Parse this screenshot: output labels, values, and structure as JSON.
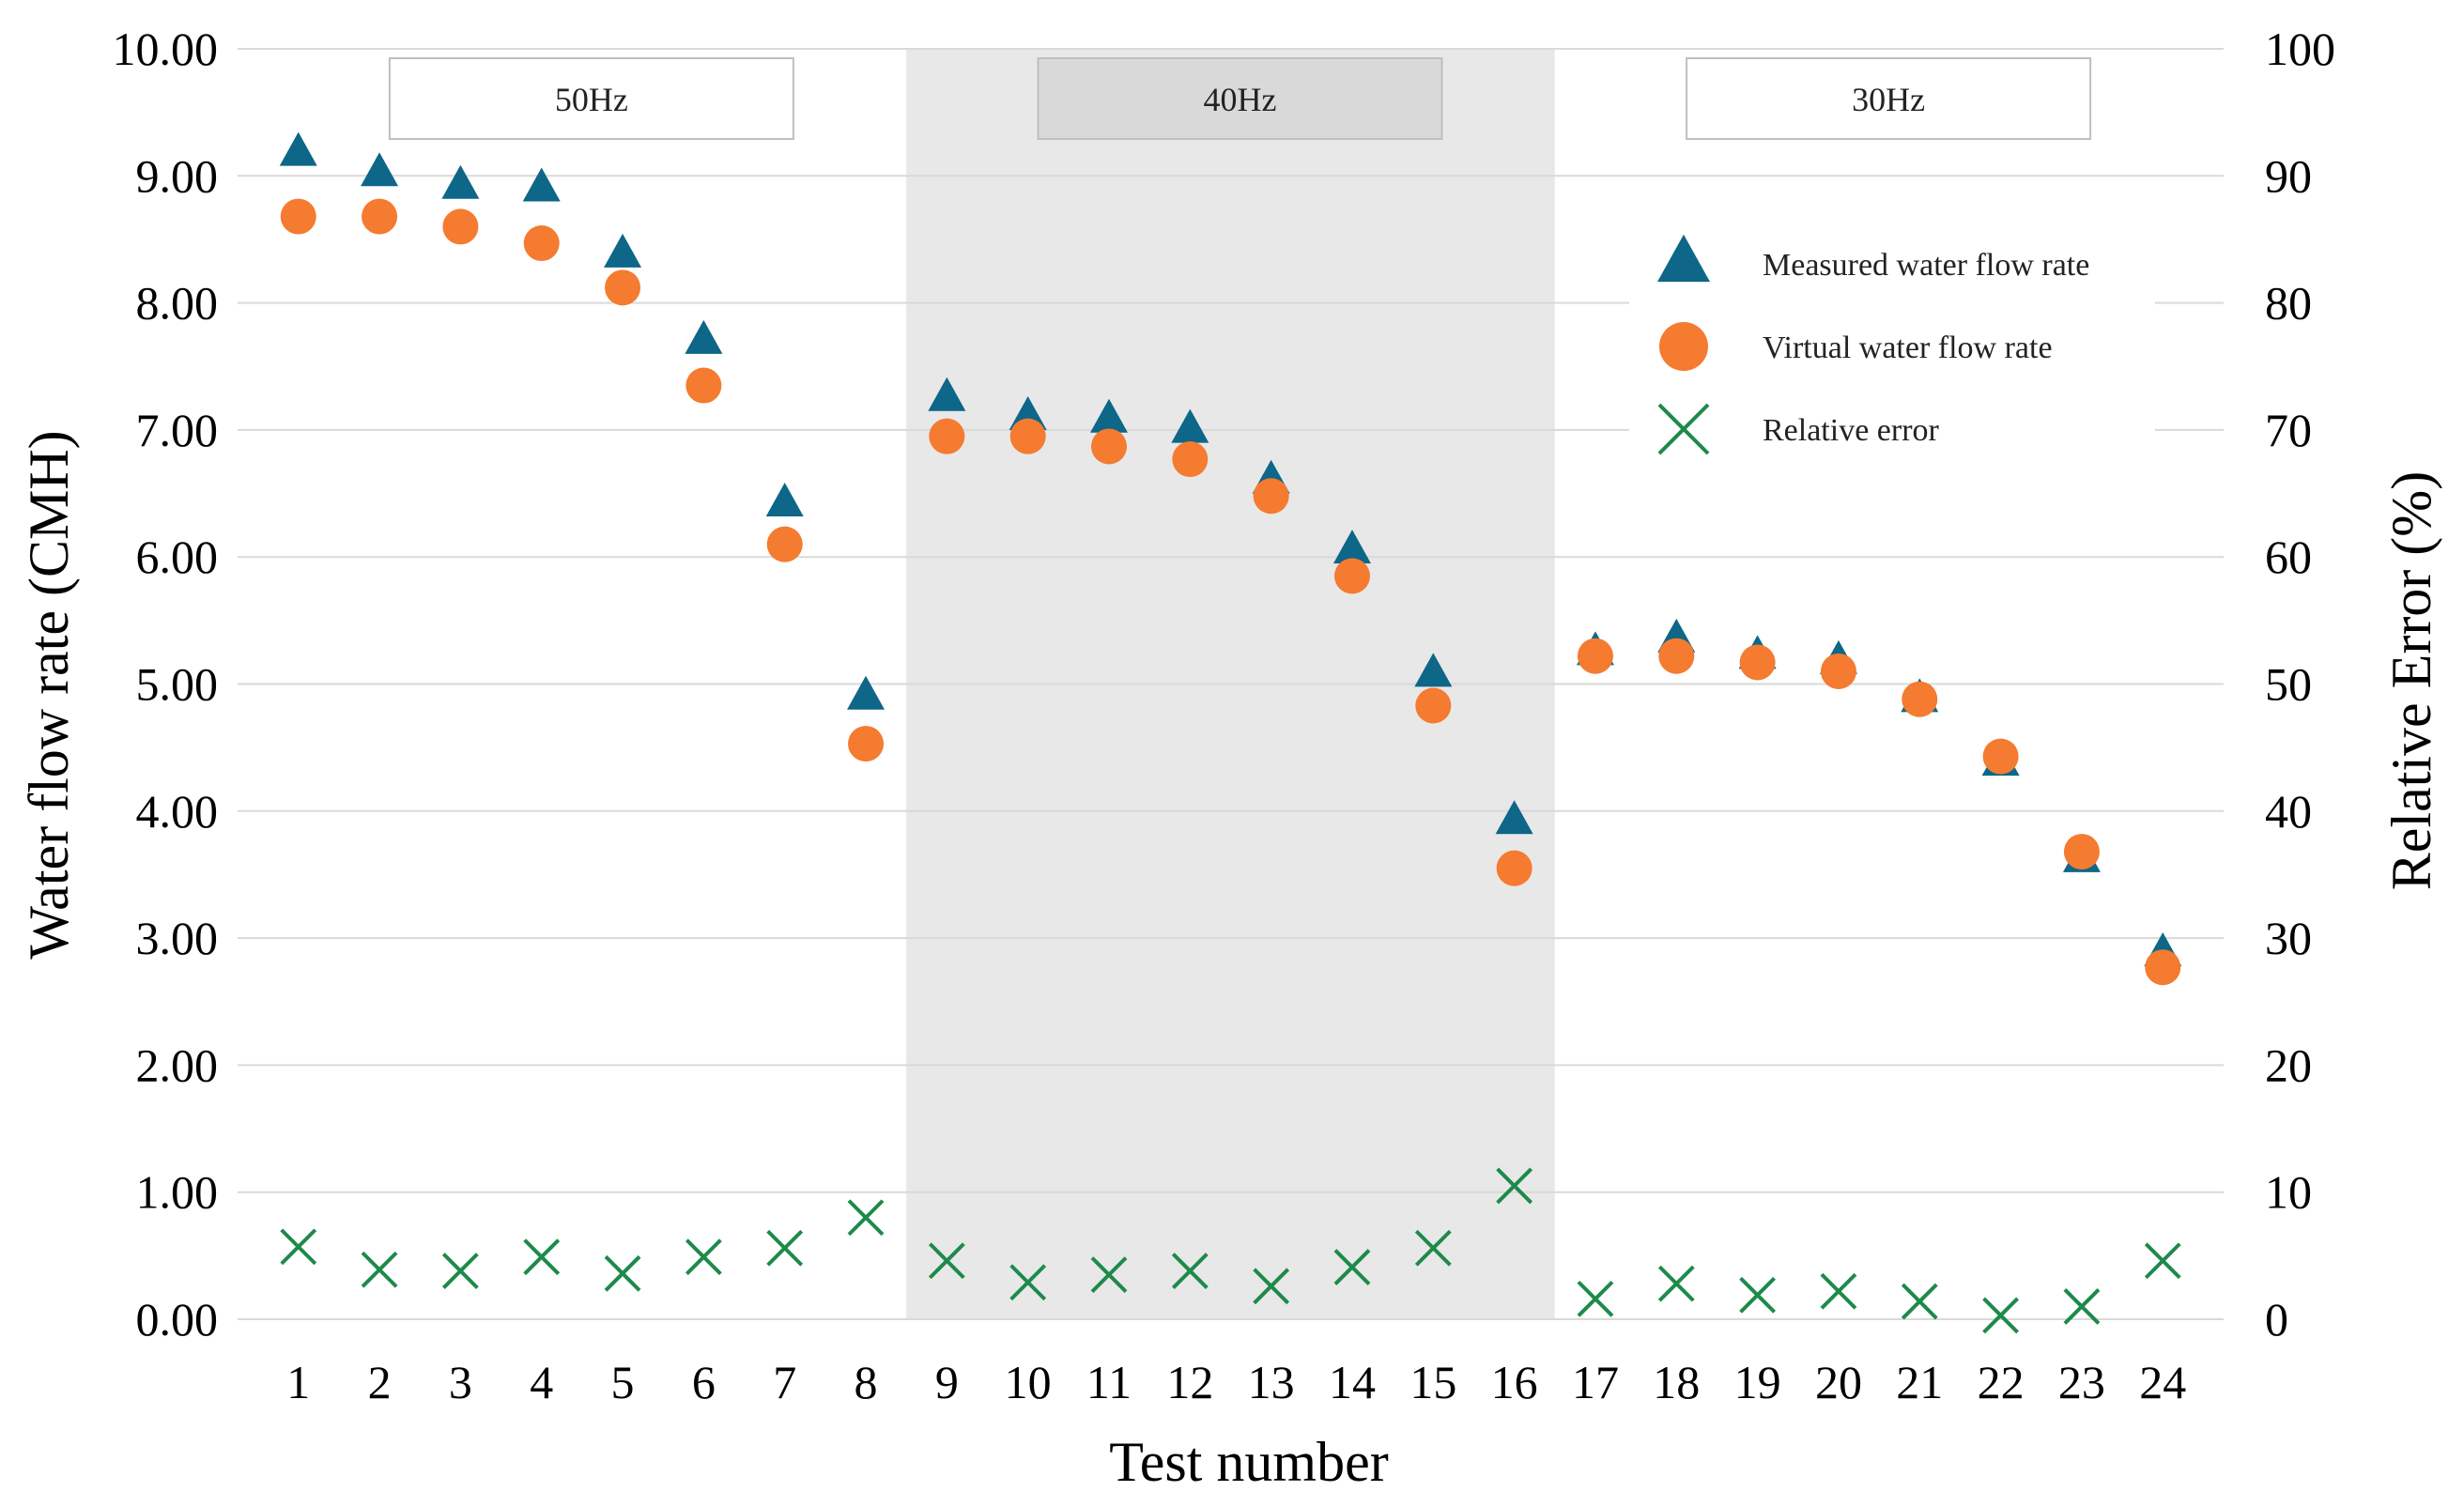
{
  "chart_data": {
    "type": "scatter",
    "xlabel": "Test number",
    "ylabel": "Water flow rate (CMH)",
    "y2label": "Relative Error (%)",
    "x": [
      1,
      2,
      3,
      4,
      5,
      6,
      7,
      8,
      9,
      10,
      11,
      12,
      13,
      14,
      15,
      16,
      17,
      18,
      19,
      20,
      21,
      22,
      23,
      24
    ],
    "xlim": [
      0.25,
      24.75
    ],
    "ylim": [
      0,
      10
    ],
    "y2lim": [
      0,
      100
    ],
    "y_ticks": [
      "0.00",
      "1.00",
      "2.00",
      "3.00",
      "4.00",
      "5.00",
      "6.00",
      "7.00",
      "8.00",
      "9.00",
      "10.00"
    ],
    "y2_ticks": [
      "0",
      "10",
      "20",
      "30",
      "40",
      "50",
      "60",
      "70",
      "80",
      "90",
      "100"
    ],
    "x_ticks": [
      "1",
      "2",
      "3",
      "4",
      "5",
      "6",
      "7",
      "8",
      "9",
      "10",
      "11",
      "12",
      "13",
      "14",
      "15",
      "16",
      "17",
      "18",
      "19",
      "20",
      "21",
      "22",
      "23",
      "24"
    ],
    "grid": true,
    "legend_position": "top-right",
    "regions": [
      {
        "label": "50Hz",
        "from": 1,
        "to": 8,
        "shaded": false
      },
      {
        "label": "40Hz",
        "from": 9,
        "to": 16,
        "shaded": true
      },
      {
        "label": "30Hz",
        "from": 17,
        "to": 24,
        "shaded": false
      }
    ],
    "series": [
      {
        "name": "Measured water flow rate",
        "axis": "left",
        "marker": "triangle",
        "color": "#0e6688",
        "values": [
          9.18,
          9.02,
          8.92,
          8.9,
          8.38,
          7.7,
          6.42,
          4.9,
          7.25,
          7.1,
          7.08,
          7.0,
          6.6,
          6.05,
          5.08,
          3.92,
          5.25,
          5.35,
          5.22,
          5.18,
          4.88,
          4.38,
          3.62,
          2.88
        ]
      },
      {
        "name": "Virtual water flow rate",
        "axis": "left",
        "marker": "circle",
        "color": "#f47b30",
        "values": [
          8.68,
          8.68,
          8.6,
          8.47,
          8.12,
          7.35,
          6.1,
          4.53,
          6.95,
          6.95,
          6.87,
          6.77,
          6.48,
          5.85,
          4.83,
          3.55,
          5.22,
          5.22,
          5.17,
          5.1,
          4.88,
          4.43,
          3.68,
          2.77
        ]
      },
      {
        "name": "Relative error",
        "axis": "right",
        "marker": "x",
        "color": "#1d8a4a",
        "values": [
          5.7,
          3.9,
          3.8,
          4.9,
          3.6,
          4.9,
          5.6,
          8.0,
          4.6,
          2.9,
          3.5,
          3.8,
          2.6,
          4.1,
          5.6,
          10.5,
          1.6,
          2.8,
          1.9,
          2.2,
          1.4,
          0.3,
          1.0,
          4.6
        ]
      }
    ]
  }
}
